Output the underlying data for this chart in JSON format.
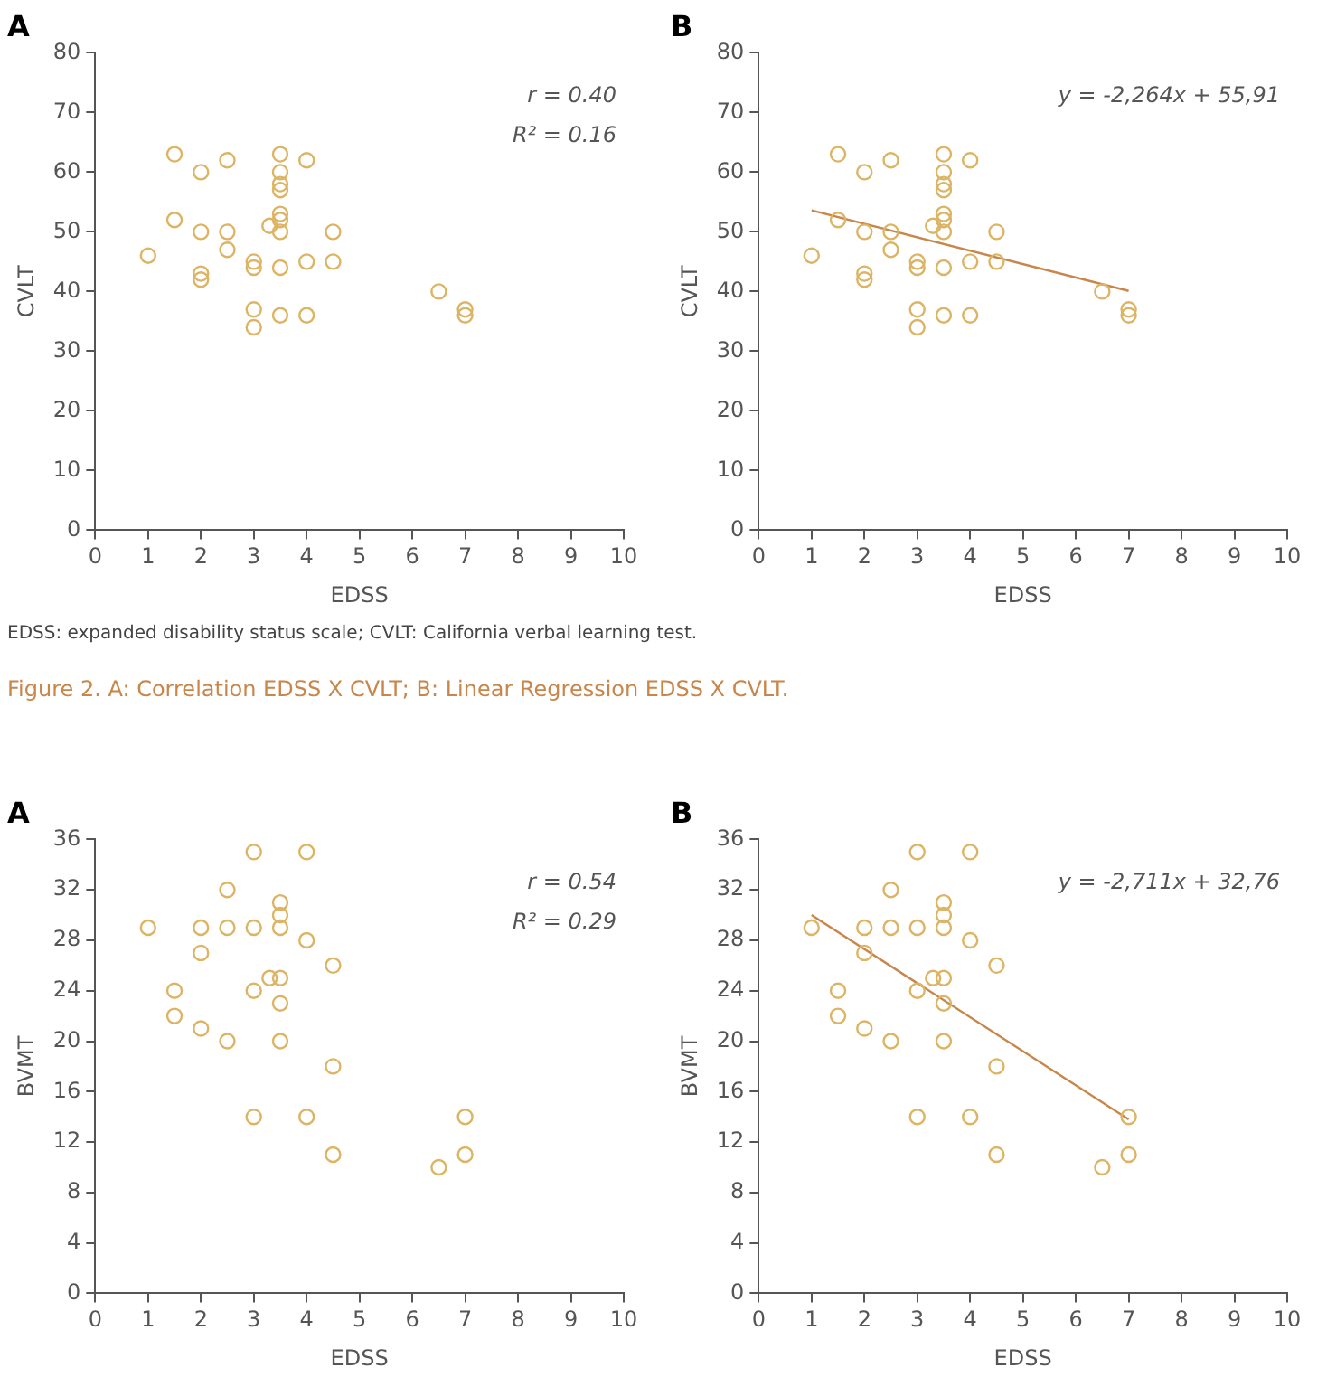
{
  "chart_data": [
    {
      "type": "scatter",
      "title": "A",
      "xlabel": "EDSS",
      "ylabel": "CVLT",
      "xlim": [
        0,
        10
      ],
      "xticks": [
        0,
        1,
        2,
        3,
        4,
        5,
        6,
        7,
        8,
        9,
        10
      ],
      "ylim": [
        0,
        80
      ],
      "yticks": [
        0,
        10,
        20,
        30,
        40,
        50,
        60,
        70,
        80
      ],
      "grid": false,
      "marker": "circle",
      "annotations": [
        "r = 0.40",
        "R² = 0.16"
      ],
      "series": [
        {
          "type": "scatter",
          "color": "#dcb463",
          "x": [
            1,
            1.5,
            1.5,
            2,
            2,
            2,
            2,
            2.5,
            2.5,
            2.5,
            3,
            3,
            3,
            3,
            3.3,
            3.5,
            3.5,
            3.5,
            3.5,
            3.5,
            3.5,
            3.5,
            3.5,
            3.5,
            4,
            4,
            4,
            4.5,
            4.5,
            6.5,
            7,
            7
          ],
          "values": [
            46,
            63,
            52,
            60,
            50,
            43,
            42,
            62,
            50,
            47,
            45,
            44,
            37,
            34,
            51,
            63,
            60,
            58,
            57,
            53,
            52,
            50,
            44,
            36,
            62,
            45,
            36,
            50,
            45,
            40,
            37,
            36
          ]
        }
      ]
    },
    {
      "type": "scatter",
      "title": "B",
      "xlabel": "EDSS",
      "ylabel": "CVLT",
      "xlim": [
        0,
        10
      ],
      "xticks": [
        0,
        1,
        2,
        3,
        4,
        5,
        6,
        7,
        8,
        9,
        10
      ],
      "ylim": [
        0,
        80
      ],
      "yticks": [
        0,
        10,
        20,
        30,
        40,
        50,
        60,
        70,
        80
      ],
      "grid": false,
      "marker": "circle",
      "annotations": [
        "y = -2,264x + 55,91"
      ],
      "series": [
        {
          "type": "scatter",
          "color": "#dcb463",
          "x": [
            1,
            1.5,
            1.5,
            2,
            2,
            2,
            2,
            2.5,
            2.5,
            2.5,
            3,
            3,
            3,
            3,
            3.3,
            3.5,
            3.5,
            3.5,
            3.5,
            3.5,
            3.5,
            3.5,
            3.5,
            3.5,
            4,
            4,
            4,
            4.5,
            4.5,
            6.5,
            7,
            7
          ],
          "values": [
            46,
            63,
            52,
            60,
            50,
            43,
            42,
            62,
            50,
            47,
            45,
            44,
            37,
            34,
            51,
            63,
            60,
            58,
            57,
            53,
            52,
            50,
            44,
            36,
            62,
            45,
            36,
            50,
            45,
            40,
            37,
            36
          ]
        },
        {
          "type": "line",
          "color": "#c8864a",
          "marker": "none",
          "x": [
            1,
            7
          ],
          "values": [
            53.6,
            40.1
          ]
        }
      ]
    },
    {
      "type": "other",
      "annotations": [
        "EDSS: expanded disability status scale; CVLT: California verbal learning test.",
        "Figure 2. A: Correlation EDSS X CVLT; B: Linear Regression EDSS X CVLT."
      ]
    },
    {
      "type": "scatter",
      "title": "A",
      "xlabel": "EDSS",
      "ylabel": "BVMT",
      "xlim": [
        0,
        10
      ],
      "xticks": [
        0,
        1,
        2,
        3,
        4,
        5,
        6,
        7,
        8,
        9,
        10
      ],
      "ylim": [
        0,
        36
      ],
      "yticks": [
        0,
        4,
        8,
        12,
        16,
        20,
        24,
        28,
        32,
        36
      ],
      "grid": false,
      "marker": "circle",
      "annotations": [
        "r = 0.54",
        "R² = 0.29"
      ],
      "series": [
        {
          "type": "scatter",
          "color": "#dcb463",
          "x": [
            1,
            1.5,
            1.5,
            2,
            2,
            2,
            2.5,
            2.5,
            2.5,
            3,
            3,
            3,
            3,
            3.3,
            3.5,
            3.5,
            3.5,
            3.5,
            3.5,
            3.5,
            4,
            4,
            4,
            4.5,
            4.5,
            4.5,
            6.5,
            7,
            7
          ],
          "values": [
            29,
            24,
            22,
            29,
            27,
            21,
            32,
            29,
            20,
            35,
            29,
            24,
            14,
            25,
            31,
            30,
            29,
            25,
            23,
            20,
            35,
            28,
            14,
            26,
            18,
            11,
            10,
            14,
            11
          ]
        }
      ]
    },
    {
      "type": "scatter",
      "title": "B",
      "xlabel": "EDSS",
      "ylabel": "BVMT",
      "xlim": [
        0,
        10
      ],
      "xticks": [
        0,
        1,
        2,
        3,
        4,
        5,
        6,
        7,
        8,
        9,
        10
      ],
      "ylim": [
        0,
        36
      ],
      "yticks": [
        0,
        4,
        8,
        12,
        16,
        20,
        24,
        28,
        32,
        36
      ],
      "grid": false,
      "marker": "circle",
      "annotations": [
        "y = -2,711x + 32,76"
      ],
      "series": [
        {
          "type": "scatter",
          "color": "#dcb463",
          "x": [
            1,
            1.5,
            1.5,
            2,
            2,
            2,
            2.5,
            2.5,
            2.5,
            3,
            3,
            3,
            3,
            3.3,
            3.5,
            3.5,
            3.5,
            3.5,
            3.5,
            3.5,
            4,
            4,
            4,
            4.5,
            4.5,
            4.5,
            6.5,
            7,
            7
          ],
          "values": [
            29,
            24,
            22,
            29,
            27,
            21,
            32,
            29,
            20,
            35,
            29,
            24,
            14,
            25,
            31,
            30,
            29,
            25,
            23,
            20,
            35,
            28,
            14,
            26,
            18,
            11,
            10,
            14,
            11
          ]
        },
        {
          "type": "line",
          "color": "#c8864a",
          "marker": "none",
          "x": [
            1,
            7
          ],
          "values": [
            30.0,
            13.8
          ]
        }
      ]
    }
  ]
}
